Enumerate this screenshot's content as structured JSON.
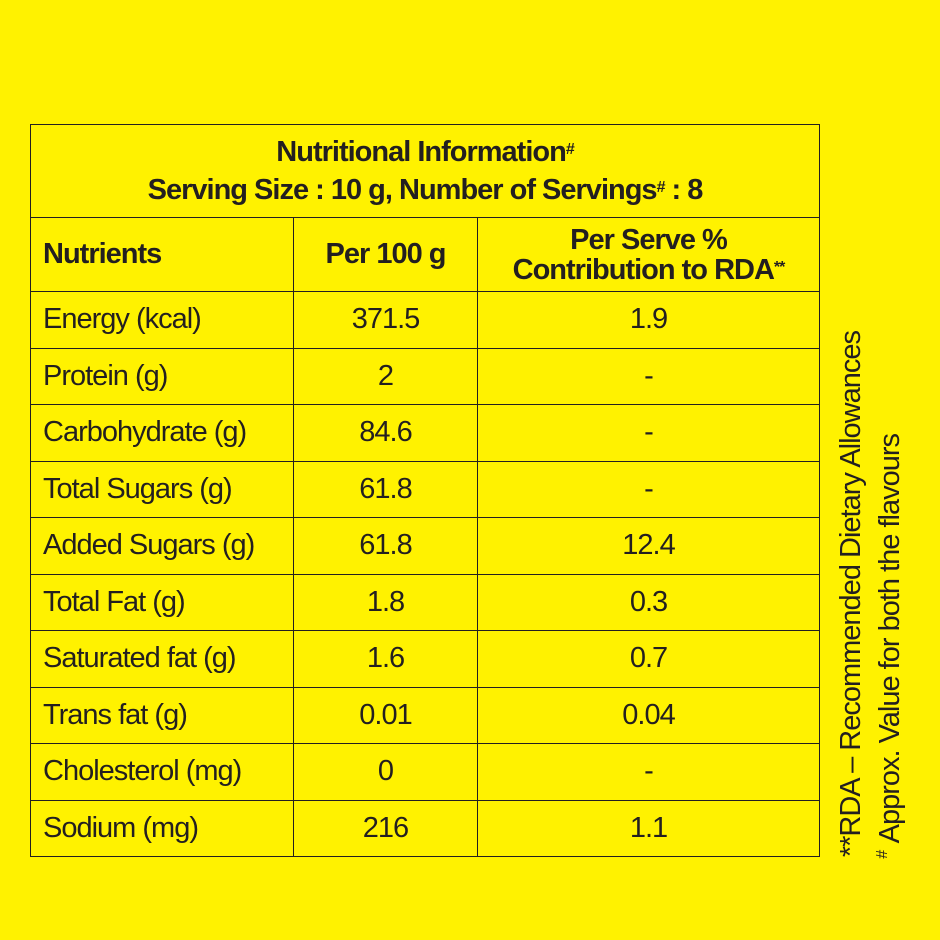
{
  "header": {
    "title": "Nutritional Information",
    "title_mark": "#",
    "serving_prefix": "Serving Size : 10 g, Number of Servings",
    "serving_mark": "#",
    "serving_suffix": " : 8"
  },
  "columns": {
    "nutrients": "Nutrients",
    "per100": "Per 100 g",
    "rda_line1": "Per Serve %",
    "rda_line2": "Contribution to RDA",
    "rda_mark": "**"
  },
  "rows": [
    {
      "name": "Energy (kcal)",
      "per100": "371.5",
      "rda": "1.9"
    },
    {
      "name": "Protein (g)",
      "per100": "2",
      "rda": "-"
    },
    {
      "name": "Carbohydrate (g)",
      "per100": "84.6",
      "rda": "-"
    },
    {
      "name": "Total Sugars (g)",
      "per100": "61.8",
      "rda": "-"
    },
    {
      "name": "Added Sugars (g)",
      "per100": "61.8",
      "rda": "12.4"
    },
    {
      "name": "Total Fat (g)",
      "per100": "1.8",
      "rda": "0.3"
    },
    {
      "name": "Saturated fat (g)",
      "per100": "1.6",
      "rda": "0.7"
    },
    {
      "name": "Trans fat (g)",
      "per100": "0.01",
      "rda": "0.04"
    },
    {
      "name": "Cholesterol (mg)",
      "per100": "0",
      "rda": "-"
    },
    {
      "name": "Sodium (mg)",
      "per100": "216",
      "rda": "1.1"
    }
  ],
  "footnotes": {
    "rda": "**RDA – Recommended Dietary Allowances",
    "approx_mark": "#",
    "approx": " Approx. Value for both the flavours"
  },
  "colors": {
    "background": "#fff200",
    "text": "#231f20"
  }
}
